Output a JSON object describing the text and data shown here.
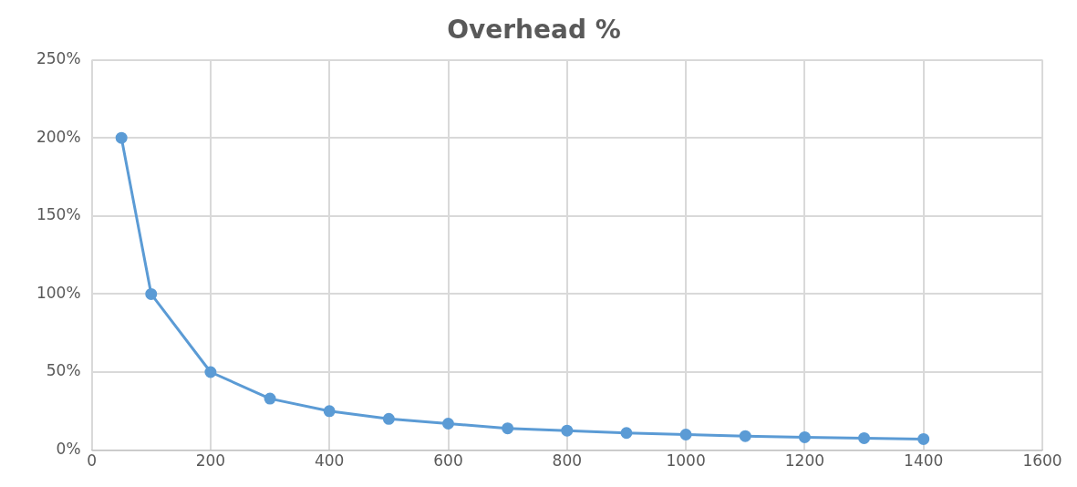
{
  "chart_data": {
    "type": "line",
    "title": "Overhead %",
    "x": [
      50,
      100,
      200,
      300,
      400,
      500,
      600,
      700,
      800,
      900,
      1000,
      1100,
      1200,
      1300,
      1400
    ],
    "series": [
      {
        "color": "#5b9bd5",
        "values": [
          200,
          100,
          50,
          33,
          25,
          20,
          17,
          14,
          12.5,
          11,
          10,
          9,
          8.3,
          7.7,
          7.1
        ]
      }
    ],
    "xlim": [
      0,
      1600
    ],
    "xticks": [
      0,
      200,
      400,
      600,
      800,
      1000,
      1200,
      1400,
      1600
    ],
    "ylim": [
      0,
      250
    ],
    "yticks": [
      {
        "value": 0,
        "label": "0%"
      },
      {
        "value": 50,
        "label": "50%"
      },
      {
        "value": 100,
        "label": "100%"
      },
      {
        "value": 150,
        "label": "150%"
      },
      {
        "value": 200,
        "label": "200%"
      },
      {
        "value": 250,
        "label": "250%"
      }
    ],
    "grid": true,
    "legend": false,
    "marker": "circle",
    "line_style": "solid"
  }
}
